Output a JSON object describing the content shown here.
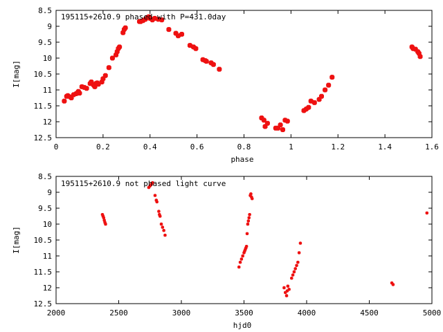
{
  "chart_data": [
    {
      "type": "scatter",
      "title": "195115+2610.9 phased with P=431.0day",
      "xlabel": "phase",
      "ylabel": "I[mag]",
      "xlim": [
        0,
        1.6
      ],
      "ylim": [
        12.5,
        8.5
      ],
      "y_inverted": true,
      "grid": false,
      "xticks": [
        "0",
        "0.2",
        "0.4",
        "0.6",
        "0.8",
        "1",
        "1.2",
        "1.4",
        "1.6"
      ],
      "xtick_values": [
        0,
        0.2,
        0.4,
        0.6,
        0.8,
        1.0,
        1.2,
        1.4,
        1.6
      ],
      "yticks": [
        "8.5",
        "9",
        "9.5",
        "10",
        "10.5",
        "11",
        "11.5",
        "12",
        "12.5"
      ],
      "ytick_values": [
        8.5,
        9,
        9.5,
        10,
        10.5,
        11,
        11.5,
        12,
        12.5
      ],
      "marker_color": "#ee1111",
      "series": [
        {
          "x": [
            0.035,
            0.045,
            0.05,
            0.06,
            0.065,
            0.075,
            0.085,
            0.09,
            0.095,
            0.1,
            0.11,
            0.12,
            0.13,
            0.145,
            0.15,
            0.16,
            0.165,
            0.17,
            0.175,
            0.18,
            0.195,
            0.2,
            0.21,
            0.225,
            0.24,
            0.255,
            0.26,
            0.265,
            0.27,
            0.285,
            0.29,
            0.295,
            0.355,
            0.36,
            0.37,
            0.38,
            0.39,
            0.395,
            0.4,
            0.41,
            0.42,
            0.435,
            0.45,
            0.48,
            0.51,
            0.52,
            0.535,
            0.57,
            0.585,
            0.595,
            0.625,
            0.635,
            0.64,
            0.66,
            0.67,
            0.695,
            0.875,
            0.885,
            0.89,
            0.9,
            0.935,
            0.945,
            0.955,
            0.965,
            0.975,
            0.985,
            1.055,
            1.065,
            1.075,
            1.085,
            1.1,
            1.12,
            1.13,
            1.145,
            1.16,
            1.175,
            1.515,
            1.52,
            1.53,
            1.54,
            1.545,
            1.55
          ],
          "y": [
            11.35,
            11.2,
            11.18,
            11.22,
            11.25,
            11.15,
            11.12,
            11.1,
            11.05,
            11.1,
            10.9,
            10.92,
            10.95,
            10.8,
            10.75,
            10.85,
            10.9,
            10.8,
            10.78,
            10.82,
            10.75,
            10.65,
            10.55,
            10.3,
            10.0,
            9.9,
            9.8,
            9.7,
            9.65,
            9.2,
            9.1,
            9.05,
            8.85,
            8.85,
            8.82,
            8.78,
            8.72,
            8.7,
            8.75,
            8.8,
            8.75,
            8.78,
            8.8,
            9.1,
            9.22,
            9.3,
            9.25,
            9.6,
            9.65,
            9.7,
            10.05,
            10.08,
            10.1,
            10.15,
            10.2,
            10.35,
            11.88,
            11.95,
            12.15,
            12.05,
            12.2,
            12.2,
            12.1,
            12.25,
            11.95,
            11.98,
            11.65,
            11.6,
            11.55,
            11.35,
            11.4,
            11.3,
            11.2,
            11.0,
            10.85,
            10.6,
            9.65,
            9.7,
            9.72,
            9.8,
            9.85,
            9.95
          ]
        }
      ]
    },
    {
      "type": "scatter",
      "title": "195115+2610.9 not phased light curve",
      "xlabel": "hjd0",
      "ylabel": "I[mag]",
      "xlim": [
        2000,
        5000
      ],
      "ylim": [
        12.5,
        8.5
      ],
      "y_inverted": true,
      "grid": false,
      "xticks": [
        "2000",
        "2500",
        "3000",
        "3500",
        "4000",
        "4500",
        "5000"
      ],
      "xtick_values": [
        2000,
        2500,
        3000,
        3500,
        4000,
        4500,
        5000
      ],
      "yticks": [
        "8.5",
        "9",
        "9.5",
        "10",
        "10.5",
        "11",
        "11.5",
        "12",
        "12.5"
      ],
      "ytick_values": [
        8.5,
        9,
        9.5,
        10,
        10.5,
        11,
        11.5,
        12,
        12.5
      ],
      "marker_color": "#ee1111",
      "series": [
        {
          "x": [
            2370,
            2375,
            2380,
            2385,
            2390,
            2395,
            2740,
            2750,
            2760,
            2770,
            2790,
            2800,
            2805,
            2820,
            2825,
            2830,
            2840,
            2850,
            2860,
            2870,
            3460,
            3470,
            3480,
            3490,
            3500,
            3505,
            3510,
            3515,
            3520,
            3525,
            3530,
            3535,
            3540,
            3545,
            3550,
            3555,
            3560,
            3565,
            3820,
            3830,
            3840,
            3845,
            3850,
            3860,
            3880,
            3890,
            3900,
            3910,
            3920,
            3930,
            3940,
            3950,
            4680,
            4690,
            4960
          ],
          "y": [
            9.7,
            9.75,
            9.8,
            9.88,
            9.95,
            10.0,
            8.85,
            8.8,
            8.75,
            8.7,
            9.1,
            9.25,
            9.3,
            9.6,
            9.7,
            9.75,
            10.0,
            10.1,
            10.2,
            10.35,
            11.35,
            11.2,
            11.1,
            11.0,
            10.9,
            10.85,
            10.8,
            10.75,
            10.7,
            10.3,
            10.0,
            9.9,
            9.8,
            9.7,
            9.1,
            9.05,
            9.15,
            9.2,
            12.0,
            12.15,
            12.25,
            12.1,
            11.95,
            12.05,
            11.7,
            11.6,
            11.5,
            11.4,
            11.3,
            11.2,
            10.9,
            10.6,
            11.85,
            11.9,
            9.65
          ]
        }
      ]
    }
  ]
}
